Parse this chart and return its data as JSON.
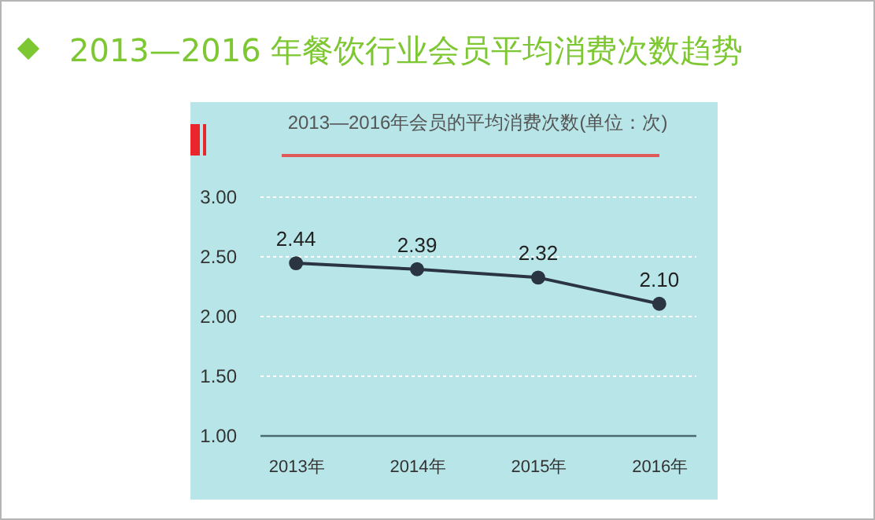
{
  "chart_data": {
    "type": "line",
    "title": "2013—2016 年餐饮行业会员平均消费次数趋势",
    "subtitle": "2013—2016年会员的平均消费次数(单位：次)",
    "categories": [
      "2013年",
      "2014年",
      "2015年",
      "2016年"
    ],
    "values": [
      2.44,
      2.39,
      2.32,
      2.1
    ],
    "value_labels": [
      "2.44",
      "2.39",
      "2.32",
      "2.10"
    ],
    "color": "#2b3542",
    "ylim": [
      1,
      3
    ],
    "yticks": [
      {
        "value": 1,
        "label": "1.00"
      },
      {
        "value": 1.5,
        "label": "1.50"
      },
      {
        "value": 2,
        "label": "2.00"
      },
      {
        "value": 2.5,
        "label": "2.50"
      },
      {
        "value": 3,
        "label": "3.00"
      }
    ],
    "grid": "y",
    "marker": "circle",
    "line_style": "solid"
  }
}
